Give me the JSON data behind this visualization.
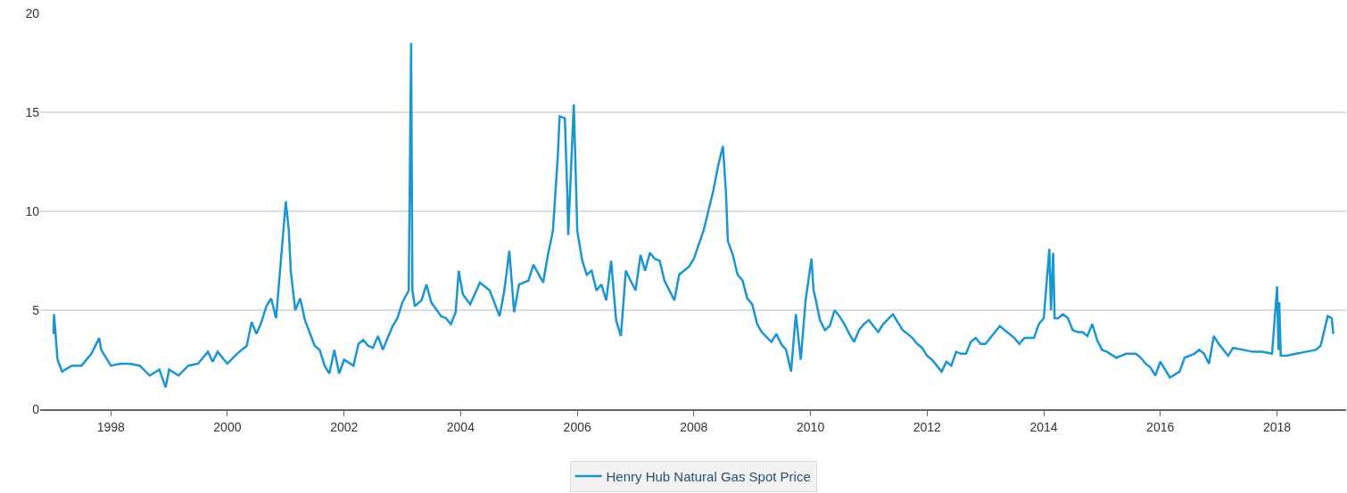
{
  "chart_data": {
    "type": "line",
    "x": [
      "1997-01-07",
      "1997-01-10",
      "1997-02",
      "1997-03",
      "1997-05",
      "1997-07",
      "1997-09",
      "1997-10-20",
      "1997-11",
      "1998-01",
      "1998-03",
      "1998-05",
      "1998-07",
      "1998-09",
      "1998-11",
      "1998-12-10",
      "1999-01",
      "1999-03",
      "1999-05",
      "1999-07",
      "1999-09",
      "1999-10",
      "1999-11",
      "2000-01",
      "2000-03",
      "2000-05",
      "2000-06",
      "2000-07",
      "2000-08",
      "2000-09",
      "2000-10",
      "2000-11",
      "2000-12",
      "2001-01-01",
      "2001-01-20",
      "2001-02",
      "2001-03",
      "2001-04",
      "2001-05",
      "2001-07",
      "2001-08",
      "2001-09",
      "2001-10",
      "2001-11",
      "2001-12",
      "2002-01",
      "2002-03",
      "2002-04",
      "2002-05",
      "2002-06",
      "2002-07",
      "2002-08",
      "2002-09",
      "2002-10",
      "2002-11",
      "2002-12",
      "2003-01",
      "2003-02-10",
      "2003-02-25",
      "2003-03-05",
      "2003-03-20",
      "2003-05",
      "2003-06",
      "2003-07",
      "2003-09",
      "2003-10",
      "2003-11",
      "2003-12",
      "2003-12-20",
      "2004-01-15",
      "2004-03",
      "2004-05",
      "2004-07",
      "2004-09",
      "2004-10",
      "2004-11",
      "2004-12",
      "2005-01",
      "2005-03",
      "2005-04",
      "2005-06",
      "2005-07",
      "2005-08",
      "2005-09",
      "2005-09-12",
      "2005-10-15",
      "2005-10-30",
      "2005-11-05",
      "2005-12-10",
      "2006-01",
      "2006-02",
      "2006-03",
      "2006-04",
      "2006-05",
      "2006-06",
      "2006-07",
      "2006-08",
      "2006-09",
      "2006-10-01",
      "2006-11",
      "2006-12",
      "2007-01",
      "2007-02",
      "2007-03",
      "2007-04",
      "2007-05",
      "2007-06",
      "2007-07",
      "2007-09",
      "2007-10",
      "2007-11",
      "2007-12",
      "2008-01",
      "2008-03",
      "2008-05",
      "2008-06",
      "2008-07-01",
      "2008-07-20",
      "2008-08",
      "2008-09",
      "2008-10",
      "2008-11",
      "2008-12",
      "2009-01",
      "2009-02",
      "2009-03",
      "2009-05",
      "2009-06",
      "2009-07",
      "2009-08",
      "2009-09",
      "2009-10",
      "2009-11",
      "2009-12",
      "2010-01-07",
      "2010-01-20",
      "2010-02",
      "2010-03",
      "2010-04",
      "2010-05",
      "2010-06",
      "2010-07",
      "2010-08",
      "2010-09",
      "2010-10",
      "2010-11",
      "2010-12",
      "2011-01",
      "2011-03",
      "2011-04",
      "2011-06",
      "2011-07",
      "2011-08",
      "2011-09",
      "2011-10",
      "2011-11",
      "2011-12",
      "2012-01",
      "2012-02",
      "2012-04",
      "2012-05",
      "2012-06",
      "2012-07",
      "2012-08",
      "2012-09",
      "2012-10",
      "2012-11",
      "2012-12",
      "2013-01",
      "2013-03",
      "2013-04",
      "2013-05",
      "2013-07",
      "2013-08",
      "2013-09",
      "2013-11",
      "2013-12",
      "2014-01",
      "2014-02-05",
      "2014-02-15",
      "2014-03-01",
      "2014-03-10",
      "2014-04",
      "2014-05",
      "2014-06",
      "2014-07",
      "2014-08",
      "2014-09",
      "2014-10",
      "2014-11",
      "2014-12",
      "2015-01",
      "2015-02",
      "2015-04",
      "2015-06",
      "2015-08",
      "2015-09",
      "2015-10",
      "2015-11",
      "2015-12",
      "2016-01",
      "2016-03",
      "2016-05",
      "2016-06",
      "2016-08",
      "2016-09",
      "2016-10",
      "2016-11",
      "2016-12",
      "2017-01",
      "2017-03",
      "2017-04",
      "2017-06",
      "2017-08",
      "2017-10",
      "2017-12",
      "2018-01-02",
      "2018-01-10",
      "2018-01-15",
      "2018-01-25",
      "2018-03",
      "2018-05",
      "2018-07",
      "2018-09",
      "2018-10",
      "2018-11-15",
      "2018-12-10",
      "2018-12-20"
    ],
    "series": [
      {
        "name": "Henry Hub Natural Gas Spot Price",
        "color": "#1a96d0",
        "values": [
          3.8,
          4.8,
          2.5,
          1.9,
          2.2,
          2.2,
          2.8,
          3.6,
          3.0,
          2.2,
          2.3,
          2.3,
          2.2,
          1.7,
          2.0,
          1.1,
          2.0,
          1.7,
          2.2,
          2.3,
          2.9,
          2.4,
          2.9,
          2.3,
          2.8,
          3.2,
          4.4,
          3.8,
          4.4,
          5.2,
          5.6,
          4.6,
          7.5,
          10.5,
          9.0,
          7.0,
          5.0,
          5.6,
          4.5,
          3.2,
          3.0,
          2.2,
          1.8,
          3.0,
          1.8,
          2.5,
          2.2,
          3.3,
          3.5,
          3.2,
          3.1,
          3.7,
          3.0,
          3.6,
          4.2,
          4.6,
          5.4,
          6.0,
          18.5,
          6.0,
          5.2,
          5.5,
          6.3,
          5.4,
          4.7,
          4.6,
          4.3,
          4.9,
          7.0,
          5.8,
          5.3,
          6.4,
          6.0,
          4.7,
          6.0,
          8.0,
          4.9,
          6.3,
          6.5,
          7.3,
          6.4,
          7.8,
          9.0,
          12.8,
          14.8,
          14.7,
          11.0,
          8.8,
          15.4,
          9.0,
          7.5,
          6.8,
          7.0,
          6.0,
          6.3,
          5.5,
          7.5,
          4.5,
          3.7,
          7.0,
          6.5,
          6.0,
          7.8,
          7.0,
          7.9,
          7.6,
          7.5,
          6.5,
          5.5,
          6.8,
          7.0,
          7.2,
          7.6,
          9.0,
          11.0,
          12.3,
          13.3,
          11.0,
          8.5,
          7.8,
          6.8,
          6.5,
          5.6,
          5.3,
          4.3,
          3.9,
          3.4,
          3.8,
          3.3,
          3.0,
          1.9,
          4.8,
          2.5,
          5.5,
          7.6,
          6.0,
          5.6,
          4.5,
          4.0,
          4.2,
          5.0,
          4.7,
          4.3,
          3.8,
          3.4,
          4.0,
          4.3,
          4.5,
          3.9,
          4.3,
          4.8,
          4.4,
          4.0,
          3.8,
          3.6,
          3.3,
          3.1,
          2.7,
          2.5,
          1.9,
          2.4,
          2.2,
          2.9,
          2.8,
          2.8,
          3.4,
          3.6,
          3.3,
          3.3,
          3.9,
          4.2,
          4.0,
          3.6,
          3.3,
          3.6,
          3.6,
          4.3,
          4.6,
          8.1,
          5.0,
          7.9,
          4.6,
          4.6,
          4.8,
          4.6,
          4.0,
          3.9,
          3.9,
          3.7,
          4.3,
          3.5,
          3.0,
          2.9,
          2.6,
          2.8,
          2.8,
          2.6,
          2.3,
          2.1,
          1.7,
          2.4,
          1.6,
          1.9,
          2.6,
          2.8,
          3.0,
          2.8,
          2.3,
          3.7,
          3.3,
          2.7,
          3.1,
          3.0,
          2.9,
          2.9,
          2.8,
          6.2,
          3.0,
          5.4,
          2.7,
          2.7,
          2.8,
          2.9,
          3.0,
          3.2,
          4.7,
          4.6,
          3.8
        ]
      }
    ],
    "xlim": [
      "1996-10-15",
      "2019-03-10"
    ],
    "xticks": [
      {
        "value": "1998-01-01",
        "label": "1998"
      },
      {
        "value": "2000-01-01",
        "label": "2000"
      },
      {
        "value": "2002-01-01",
        "label": "2002"
      },
      {
        "value": "2004-01-01",
        "label": "2004"
      },
      {
        "value": "2006-01-01",
        "label": "2006"
      },
      {
        "value": "2008-01-01",
        "label": "2008"
      },
      {
        "value": "2010-01-01",
        "label": "2010"
      },
      {
        "value": "2012-01-01",
        "label": "2012"
      },
      {
        "value": "2014-01-01",
        "label": "2014"
      },
      {
        "value": "2016-01-01",
        "label": "2016"
      },
      {
        "value": "2018-01-01",
        "label": "2018"
      }
    ],
    "ylim": [
      0,
      20
    ],
    "yticks": [
      0,
      5,
      10,
      15,
      20
    ],
    "grid": "y",
    "legend": "bottom",
    "marker": "none",
    "line_style": "solid"
  }
}
